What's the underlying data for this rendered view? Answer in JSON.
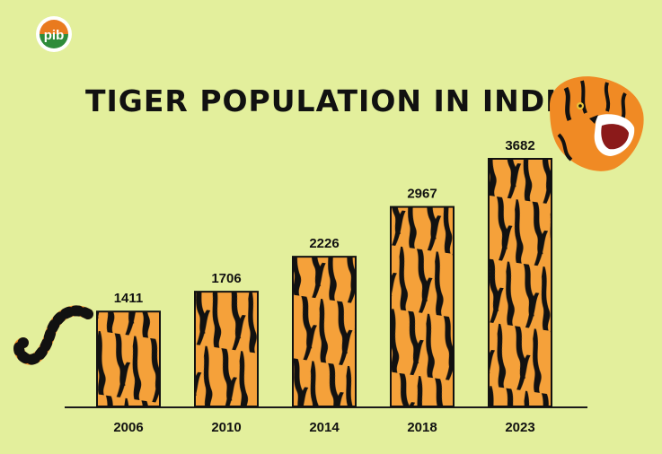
{
  "logo": {
    "text": "pib"
  },
  "chart_data": {
    "type": "bar",
    "title": "TIGER POPULATION IN INDIA",
    "xlabel": "",
    "ylabel": "",
    "categories": [
      "2006",
      "2010",
      "2014",
      "2018",
      "2023"
    ],
    "values": [
      1411,
      1706,
      2226,
      2967,
      3682
    ],
    "ylim": [
      0,
      3682
    ],
    "grid": false,
    "legend": "none",
    "colors": {
      "bar_fill": "#f5a13a",
      "stripe": "#111111",
      "background": "#e3ef9c",
      "axis": "#1a1a1a"
    }
  }
}
